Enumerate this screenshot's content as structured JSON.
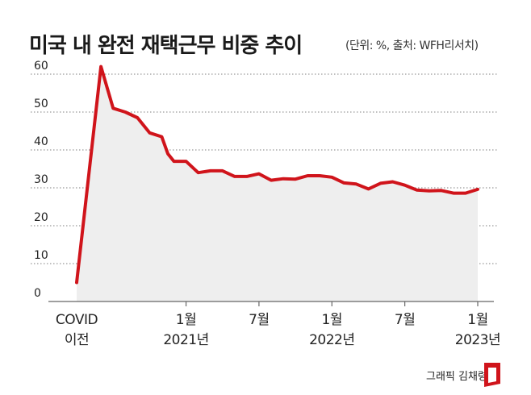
{
  "header": {
    "title": "미국 내 완전 재택근무 비중 추이",
    "source_note": "(단위: %, 출처: WFH리서치)"
  },
  "footer": {
    "credit": "그래픽 김채령"
  },
  "colors": {
    "line": "#d0141b",
    "area": "#eeeeee",
    "grid": "#999999",
    "text": "#222222"
  },
  "chart_data": {
    "type": "area",
    "title": "미국 내 완전 재택근무 비중 추이",
    "unit_note": "(단위: %, 출처: WFH리서치)",
    "xlabel": "",
    "ylabel": "",
    "ylim": [
      0,
      60
    ],
    "yticks": [
      0,
      10,
      20,
      30,
      40,
      50,
      60
    ],
    "grid": true,
    "legend": "none",
    "xtick_labels": [
      {
        "x": -1,
        "lines": [
          "COVID",
          "이전"
        ]
      },
      {
        "x": 8,
        "lines": [
          "1월",
          "2021년"
        ]
      },
      {
        "x": 14,
        "lines": [
          "7월"
        ]
      },
      {
        "x": 20,
        "lines": [
          "1월",
          "2022년"
        ]
      },
      {
        "x": 26,
        "lines": [
          "7월"
        ]
      },
      {
        "x": 32,
        "lines": [
          "1월",
          "2023년"
        ]
      }
    ],
    "series": [
      {
        "x": [
          -1,
          1,
          2,
          3,
          4,
          5,
          6,
          6.5,
          7,
          8,
          9,
          10,
          11,
          12,
          13,
          14,
          15,
          16,
          17,
          18,
          19,
          20,
          21,
          22,
          23,
          24,
          25,
          26,
          27,
          28,
          29,
          30,
          31,
          32
        ],
        "values": [
          5,
          62,
          51,
          50,
          48.5,
          44.5,
          43.5,
          39,
          37,
          37,
          34,
          34.5,
          34.5,
          33,
          33,
          33.7,
          32,
          32.4,
          32.3,
          33.2,
          33.2,
          32.8,
          31.3,
          31,
          29.7,
          31.2,
          31.6,
          30.7,
          29.4,
          29.2,
          29.3,
          28.6,
          28.6,
          29.6
        ]
      }
    ]
  }
}
